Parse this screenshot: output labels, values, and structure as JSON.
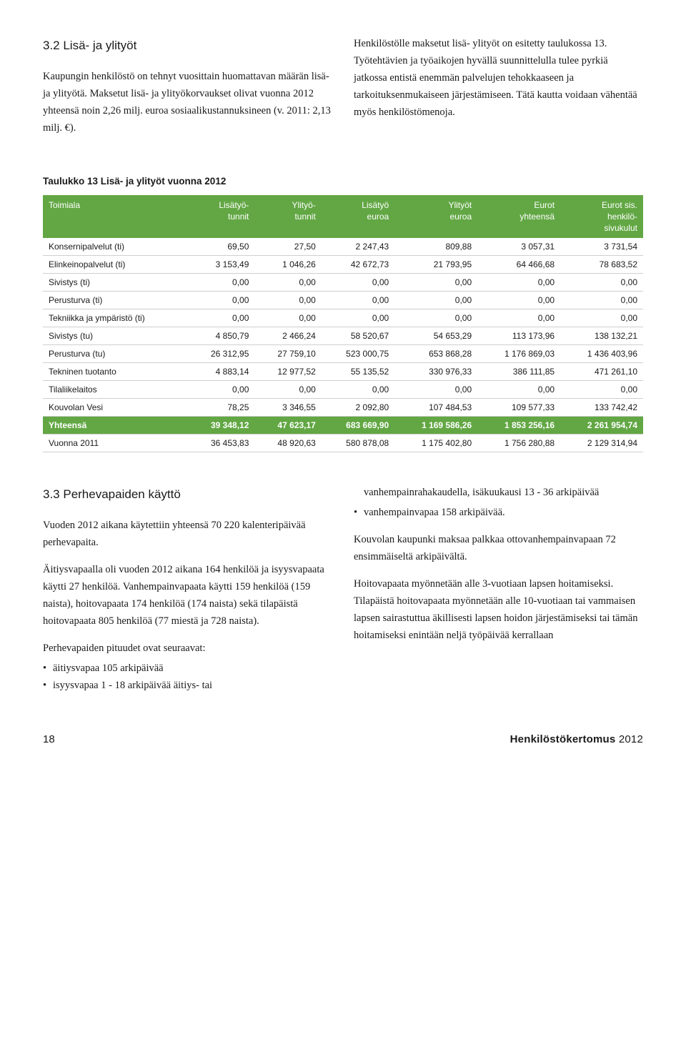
{
  "section32": {
    "heading": "3.2 Lisä- ja ylityöt",
    "col1_p1": "Kaupungin henkilöstö on tehnyt vuosittain huomattavan määrän lisä- ja ylityötä. Maksetut lisä- ja ylityökorvaukset olivat vuonna 2012 yhteensä noin 2,26 milj. euroa sosiaalikustannuksineen (v. 2011: 2,13 milj. €).",
    "col2_p1": "Henkilöstölle maksetut lisä- ylityöt on esitetty taulukossa 13. Työtehtävien ja työaikojen hyvällä suunnittelulla tulee pyrkiä jatkossa entistä enemmän palvelujen tehokkaaseen ja tarkoituksenmukaiseen järjestämiseen. Tätä kautta voidaan vähentää myös henkilöstömenoja."
  },
  "table13": {
    "title": "Taulukko 13 Lisä- ja ylityöt vuonna 2012",
    "header_bg": "#62a744",
    "header_fg": "#ffffff",
    "row_border": "#cfcfcf",
    "columns": [
      {
        "l1": "Toimiala",
        "l2": "",
        "l3": ""
      },
      {
        "l1": "Lisätyö-",
        "l2": "tunnit",
        "l3": ""
      },
      {
        "l1": "Ylityö-",
        "l2": "tunnit",
        "l3": ""
      },
      {
        "l1": "Lisätyö",
        "l2": "euroa",
        "l3": ""
      },
      {
        "l1": "Ylityöt",
        "l2": "euroa",
        "l3": ""
      },
      {
        "l1": "Eurot",
        "l2": "yhteensä",
        "l3": ""
      },
      {
        "l1": "Eurot sis.",
        "l2": "henkilö-",
        "l3": "sivukulut"
      }
    ],
    "rows": [
      [
        "Konsernipalvelut (ti)",
        "69,50",
        "27,50",
        "2 247,43",
        "809,88",
        "3 057,31",
        "3 731,54"
      ],
      [
        "Elinkeinopalvelut (ti)",
        "3 153,49",
        "1 046,26",
        "42 672,73",
        "21 793,95",
        "64 466,68",
        "78 683,52"
      ],
      [
        "Sivistys (ti)",
        "0,00",
        "0,00",
        "0,00",
        "0,00",
        "0,00",
        "0,00"
      ],
      [
        "Perusturva (ti)",
        "0,00",
        "0,00",
        "0,00",
        "0,00",
        "0,00",
        "0,00"
      ],
      [
        "Tekniikka ja ympäristö (ti)",
        "0,00",
        "0,00",
        "0,00",
        "0,00",
        "0,00",
        "0,00"
      ],
      [
        "Sivistys (tu)",
        "4 850,79",
        "2 466,24",
        "58 520,67",
        "54 653,29",
        "113 173,96",
        "138 132,21"
      ],
      [
        "Perusturva (tu)",
        "26 312,95",
        "27 759,10",
        "523 000,75",
        "653 868,28",
        "1 176 869,03",
        "1 436 403,96"
      ],
      [
        "Tekninen tuotanto",
        "4 883,14",
        "12 977,52",
        "55 135,52",
        "330 976,33",
        "386 111,85",
        "471 261,10"
      ],
      [
        "Tilaliikelaitos",
        "0,00",
        "0,00",
        "0,00",
        "0,00",
        "0,00",
        "0,00"
      ],
      [
        "Kouvolan Vesi",
        "78,25",
        "3 346,55",
        "2 092,80",
        "107 484,53",
        "109 577,33",
        "133 742,42"
      ]
    ],
    "total": [
      "Yhteensä",
      "39 348,12",
      "47 623,17",
      "683 669,90",
      "1 169 586,26",
      "1 853 256,16",
      "2 261 954,74"
    ],
    "last": [
      "Vuonna 2011",
      "36 453,83",
      "48 920,63",
      "580 878,08",
      "1 175 402,80",
      "1 756 280,88",
      "2 129 314,94"
    ]
  },
  "section33": {
    "heading": "3.3 Perhevapaiden käyttö",
    "col1_p1": "Vuoden 2012 aikana käytettiin yhteensä 70 220 kalenteripäivää perhevapaita.",
    "col1_p2": "Äitiysvapaalla oli vuoden 2012 aikana 164 henkilöä ja isyysvapaata käytti 27 henkilöä. Vanhempainvapaata käytti 159 henkilöä (159 naista), hoitovapaata 174 henkilöä (174 naista) sekä tilapäistä hoitovapaata 805 henkilöä (77 miestä ja 728 naista).",
    "bullets_lead": "Perhevapaiden pituudet ovat seuraavat:",
    "bullets1": [
      "äitiysvapaa 105 arkipäivää",
      "isyysvapaa 1 - 18 arkipäivää äitiys- tai"
    ],
    "col2_cont": "vanhempainrahakaudella, isäkuukausi 13 - 36 arkipäivää",
    "col2_bullet": "vanhempainvapaa 158 arkipäivää.",
    "col2_p1": "Kouvolan kaupunki maksaa palkkaa ottovanhempainvapaan 72 ensimmäiseltä arkipäivältä.",
    "col2_p2": "Hoitovapaata myönnetään alle 3-vuotiaan lapsen hoitamiseksi. Tilapäistä hoitovapaata myönnetään alle 10-vuotiaan tai vammaisen lapsen sairastuttua äkillisesti lapsen hoidon järjestämiseksi tai tämän hoitamiseksi enintään neljä työpäivää kerrallaan"
  },
  "footer": {
    "page": "18",
    "title_bold": "Henkilöstökertomus",
    "title_rest": " 2012"
  }
}
